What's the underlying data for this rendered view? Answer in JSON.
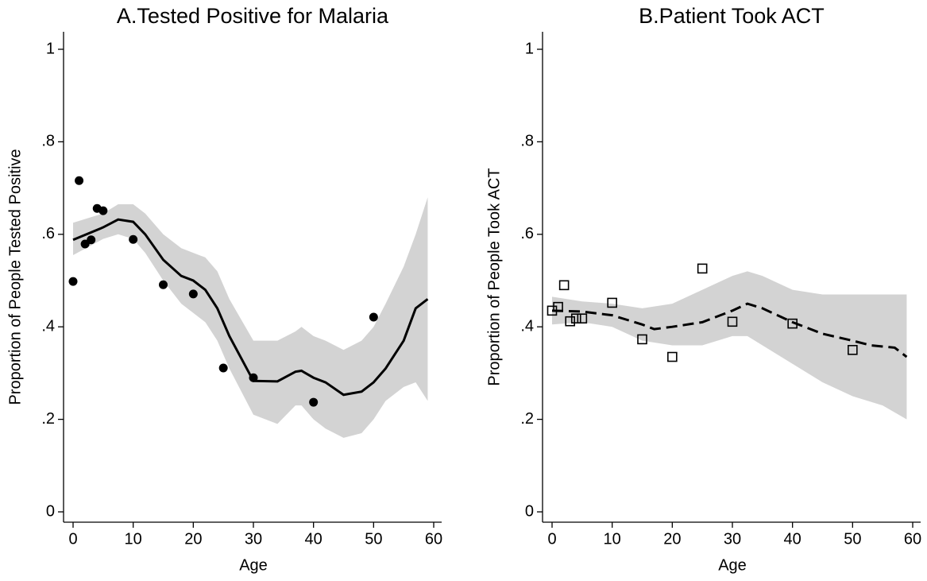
{
  "chart_data": [
    {
      "type": "scatter",
      "title": "A.Tested Positive for Malaria",
      "xlabel": "Age",
      "ylabel": "Proportion of People Tested Positive",
      "xlim": [
        0,
        60
      ],
      "ylim": [
        0,
        1
      ],
      "xticks": [
        0,
        10,
        20,
        30,
        40,
        50,
        60
      ],
      "yticks": [
        0,
        {
          "value": 0.2,
          "label": ".2"
        },
        {
          "value": 0.4,
          "label": ".4"
        },
        {
          "value": 0.6,
          "label": ".6"
        },
        {
          "value": 0.8,
          "label": ".8"
        },
        1
      ],
      "points": {
        "marker": "filled-circle",
        "color": "#000000",
        "x": [
          0,
          1,
          2,
          3,
          4,
          5,
          10,
          15,
          20,
          25,
          30,
          40,
          50
        ],
        "values": [
          0.498,
          0.716,
          0.579,
          0.588,
          0.656,
          0.651,
          0.589,
          0.491,
          0.471,
          0.311,
          0.29,
          0.237,
          0.421
        ]
      },
      "fit": {
        "color": "#000000",
        "dashed": false,
        "x": [
          0,
          5,
          7.5,
          10,
          12,
          15,
          18,
          20,
          22,
          24,
          26,
          30,
          34,
          37,
          38,
          40,
          42,
          45,
          48,
          50,
          52,
          55,
          57,
          59
        ],
        "values": [
          0.588,
          0.615,
          0.632,
          0.627,
          0.6,
          0.545,
          0.51,
          0.5,
          0.48,
          0.44,
          0.38,
          0.283,
          0.282,
          0.303,
          0.305,
          0.29,
          0.28,
          0.253,
          0.26,
          0.28,
          0.31,
          0.37,
          0.44,
          0.46
        ]
      },
      "band": {
        "color": "#d3d3d3",
        "x": [
          0,
          5,
          7.5,
          10,
          12,
          15,
          18,
          20,
          22,
          24,
          26,
          30,
          34,
          37,
          38,
          40,
          42,
          45,
          48,
          50,
          52,
          55,
          57,
          59
        ],
        "lower": [
          0.555,
          0.59,
          0.6,
          0.59,
          0.56,
          0.5,
          0.45,
          0.43,
          0.41,
          0.37,
          0.31,
          0.21,
          0.19,
          0.23,
          0.23,
          0.2,
          0.18,
          0.16,
          0.17,
          0.2,
          0.24,
          0.27,
          0.28,
          0.24
        ],
        "upper": [
          0.625,
          0.645,
          0.665,
          0.665,
          0.645,
          0.6,
          0.57,
          0.56,
          0.55,
          0.52,
          0.46,
          0.37,
          0.37,
          0.39,
          0.4,
          0.38,
          0.37,
          0.35,
          0.37,
          0.4,
          0.45,
          0.53,
          0.6,
          0.68
        ]
      }
    },
    {
      "type": "scatter",
      "title": "B.Patient Took ACT",
      "xlabel": "Age",
      "ylabel": "Proportion of People Took ACT",
      "xlim": [
        0,
        60
      ],
      "ylim": [
        0,
        1
      ],
      "xticks": [
        0,
        10,
        20,
        30,
        40,
        50,
        60
      ],
      "yticks": [
        0,
        {
          "value": 0.2,
          "label": ".2"
        },
        {
          "value": 0.4,
          "label": ".4"
        },
        {
          "value": 0.6,
          "label": ".6"
        },
        {
          "value": 0.8,
          "label": ".8"
        },
        1
      ],
      "points": {
        "marker": "hollow-square",
        "color": "#000000",
        "x": [
          0,
          1,
          2,
          3,
          4,
          5,
          10,
          15,
          20,
          25,
          30,
          40,
          50
        ],
        "values": [
          0.435,
          0.443,
          0.49,
          0.412,
          0.418,
          0.418,
          0.452,
          0.373,
          0.335,
          0.526,
          0.411,
          0.407,
          0.35
        ]
      },
      "fit": {
        "color": "#000000",
        "dashed": true,
        "x": [
          0,
          5,
          10,
          15,
          17,
          20,
          25,
          30,
          32.5,
          35,
          40,
          45,
          50,
          53,
          57,
          59
        ],
        "values": [
          0.435,
          0.433,
          0.425,
          0.405,
          0.395,
          0.4,
          0.41,
          0.435,
          0.45,
          0.44,
          0.41,
          0.385,
          0.37,
          0.36,
          0.355,
          0.335
        ]
      },
      "band": {
        "color": "#d3d3d3",
        "x": [
          0,
          5,
          10,
          15,
          20,
          25,
          30,
          32.5,
          35,
          40,
          45,
          50,
          55,
          59
        ],
        "lower": [
          0.405,
          0.41,
          0.4,
          0.37,
          0.36,
          0.36,
          0.38,
          0.38,
          0.36,
          0.32,
          0.28,
          0.25,
          0.23,
          0.2
        ],
        "upper": [
          0.465,
          0.455,
          0.45,
          0.44,
          0.45,
          0.48,
          0.51,
          0.52,
          0.51,
          0.48,
          0.47,
          0.47,
          0.47,
          0.47
        ]
      }
    }
  ]
}
